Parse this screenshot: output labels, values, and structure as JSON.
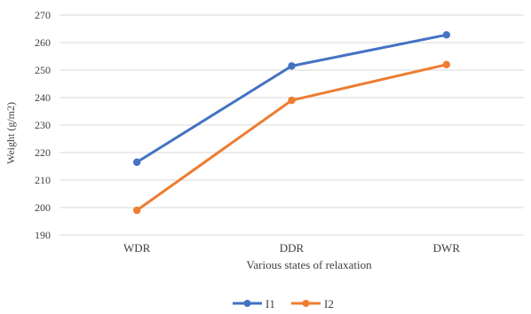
{
  "chart_data": {
    "type": "line",
    "title": "",
    "xlabel": "Various states of relaxation",
    "ylabel": "Weight (g/m2)",
    "categories": [
      "WDR",
      "DDR",
      "DWR"
    ],
    "ylim": [
      190,
      270
    ],
    "yticks": [
      190,
      200,
      210,
      220,
      230,
      240,
      250,
      260,
      270
    ],
    "grid": true,
    "legend_position": "bottom",
    "series": [
      {
        "name": "I1",
        "color": "#4472C4",
        "values": [
          216.5,
          251.5,
          262.8
        ]
      },
      {
        "name": "I2",
        "color": "#ED7D31",
        "values": [
          199.0,
          239.0,
          252.0
        ]
      }
    ]
  }
}
